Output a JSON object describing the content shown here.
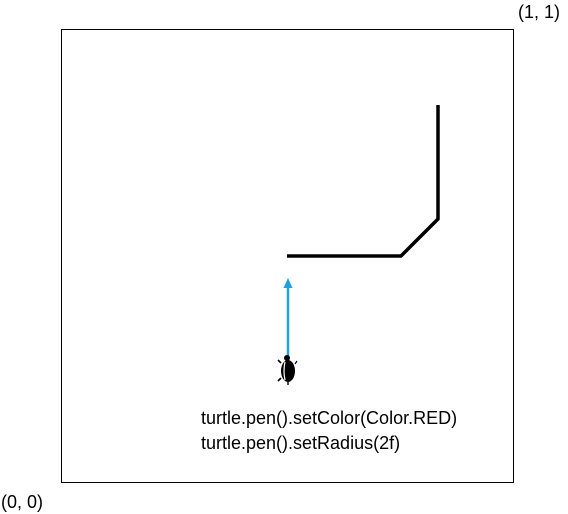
{
  "coordinates": {
    "top_right": "(1, 1)",
    "bottom_left": "(0, 0)"
  },
  "code_lines": [
    "turtle.pen().setColor(Color.RED)",
    "turtle.pen().setRadius(2f)"
  ],
  "colors": {
    "path": "#000000",
    "heading_arrow": "#1ea1e0",
    "turtle": "#000000"
  },
  "icons": {
    "turtle": "turtle-icon",
    "heading": "arrow-up-icon"
  }
}
